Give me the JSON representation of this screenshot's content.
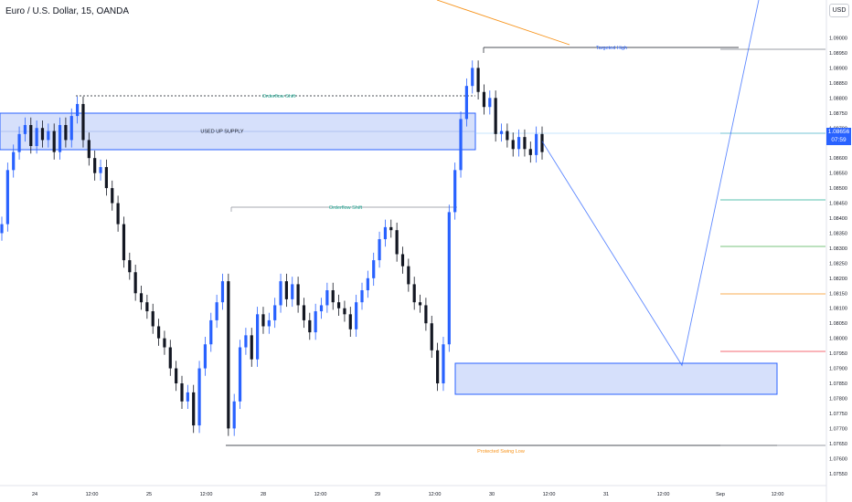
{
  "header": {
    "title": "Euro / U.S. Dollar, 15, OANDA",
    "currency": "USD"
  },
  "current_price": {
    "value": "1.08656",
    "countdown": "07:59"
  },
  "annotations": {
    "used_up_supply": "USED UP SUPPLY",
    "orderflow_shift_top": "Orderflow Shift",
    "orderflow_shift_mid": "Orderflow Shift",
    "targeted_high": "Targeted High",
    "protected_swing_low": "Protected Swing Low"
  },
  "colors": {
    "background": "#ffffff",
    "up_candle": "#2962ff",
    "down_candle": "#131722",
    "zone_fill": "#d6e0fb",
    "zone_border": "#2962ff",
    "projection": "#2962ff",
    "orderflow_text": "#22ab94",
    "targeted_text": "#2962ff",
    "protected_text": "#f7931a"
  },
  "chart_data": {
    "type": "line",
    "instrument": "EUR/USD",
    "timeframe": "15",
    "y_axis_labels": [
      "1.09000",
      "1.08950",
      "1.08900",
      "1.08850",
      "1.08800",
      "1.08750",
      "1.08700",
      "1.08656",
      "1.08600",
      "1.08550",
      "1.08500",
      "1.08450",
      "1.08400",
      "1.08350",
      "1.08300",
      "1.08250",
      "1.08200",
      "1.08150",
      "1.08100",
      "1.08050",
      "1.08000",
      "1.07950",
      "1.07900",
      "1.07850",
      "1.07800",
      "1.07750",
      "1.07700",
      "1.07650",
      "1.07600",
      "1.07550"
    ],
    "ylim": [
      1.07525,
      1.09035
    ],
    "x_axis_labels": [
      "24",
      "12:00",
      "25",
      "12:00",
      "28",
      "12:00",
      "29",
      "12:00",
      "30",
      "12:00",
      "31",
      "12:00",
      "Sep",
      "12:00"
    ],
    "series": [
      {
        "values": [
          1.0838,
          1.0856,
          1.0862,
          1.0868,
          1.0871,
          1.0864,
          1.087,
          1.0866,
          1.0869,
          1.0862,
          1.0871,
          1.0866,
          1.0874,
          1.0878,
          1.0866,
          1.086,
          1.0855,
          1.0857,
          1.085,
          1.0845,
          1.0838,
          1.0826,
          1.0822,
          1.0815,
          1.0812,
          1.0809,
          1.0804,
          1.08,
          1.0797,
          1.079,
          1.0785,
          1.0779,
          1.0782,
          1.0771,
          1.079,
          1.0798,
          1.0806,
          1.0812,
          1.0819,
          1.077,
          1.0779,
          1.0797,
          1.0801,
          1.0793,
          1.0808,
          1.0804,
          1.0806,
          1.0811,
          1.0819,
          1.0813,
          1.0818,
          1.0811,
          1.0806,
          1.0802,
          1.0809,
          1.0811,
          1.0816,
          1.0812,
          1.081,
          1.0808,
          1.0803,
          1.0812,
          1.0816,
          1.082,
          1.0826,
          1.0833,
          1.0837,
          1.0836,
          1.0828,
          1.0824,
          1.0818,
          1.0812,
          1.0811,
          1.0805,
          1.0796,
          1.0785,
          1.0798,
          1.0842,
          1.0856,
          1.0873,
          1.0884,
          1.089,
          1.0882,
          1.0877,
          1.088,
          1.0868,
          1.0869,
          1.0866,
          1.0863,
          1.0867,
          1.0863,
          1.0861,
          1.0868,
          1.0862
        ]
      },
      {
        "name": "projection",
        "values": [
          1.08656,
          1.0791,
          1.0918
        ]
      }
    ],
    "zones": [
      {
        "label": "USED UP SUPPLY",
        "low": 1.086,
        "high": 1.08733
      },
      {
        "label": "",
        "low": 1.07825,
        "high": 1.07925
      }
    ],
    "levels": [
      {
        "label": "Orderflow Shift",
        "value": 1.0878
      },
      {
        "label": "Orderflow Shift",
        "value": 1.0842
      },
      {
        "label": "Targeted High",
        "value": 1.0892
      },
      {
        "label": "Protected Swing Low",
        "value": 1.07665
      }
    ],
    "grid": false
  }
}
